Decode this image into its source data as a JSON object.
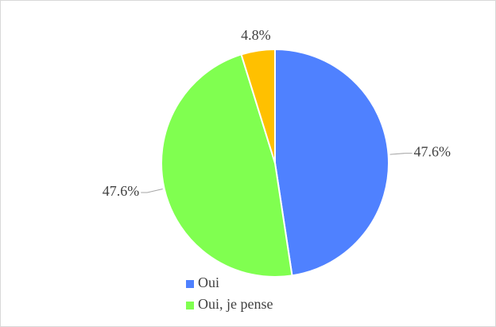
{
  "chart_data": {
    "type": "pie",
    "categories": [
      "Oui",
      "Oui, je pense",
      null
    ],
    "values": [
      47.6,
      47.6,
      4.8
    ],
    "value_labels": [
      "47.6%",
      "47.6%",
      "4.8%"
    ],
    "colors": [
      "#4f81ff",
      "#80ff50",
      "#ffc000"
    ]
  }
}
